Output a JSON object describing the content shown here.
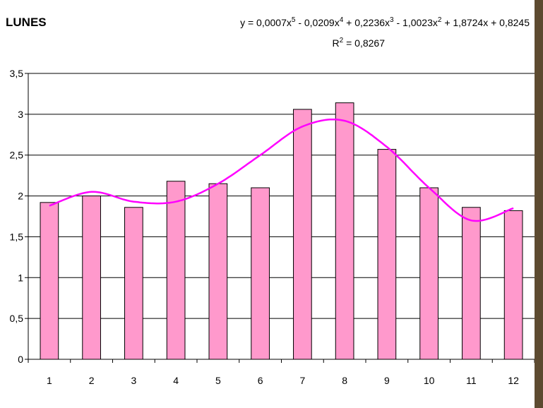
{
  "chart_data": {
    "type": "bar",
    "title": "LUNES",
    "categories": [
      "1",
      "2",
      "3",
      "4",
      "5",
      "6",
      "7",
      "8",
      "9",
      "10",
      "11",
      "12"
    ],
    "series": [
      {
        "values": [
          1.92,
          2.0,
          1.86,
          2.18,
          2.15,
          2.1,
          3.06,
          3.14,
          2.57,
          2.1,
          1.86,
          1.82
        ],
        "color": "#ff99cc"
      }
    ],
    "trendline": {
      "type": "polynomial",
      "order": 5,
      "coefficients": [
        0.0007,
        -0.0209,
        0.2236,
        -1.0023,
        1.8724,
        0.8245
      ],
      "equation_parts": {
        "lead": "y = 0,0007x",
        "p5": "5",
        "t4": " - 0,0209x",
        "p4": "4",
        "t3": " + 0,2236x",
        "p3": "3",
        "t2": " - 1,0023x",
        "p2": "2",
        "tail": " + 1,8724x + 0,8245"
      },
      "r2_parts": {
        "lead": "R",
        "p": "2",
        "tail": " = 0,8267"
      },
      "color": "#ff00ff"
    },
    "ylim": [
      0,
      3.5
    ],
    "yticks": [
      "0",
      "0,5",
      "1",
      "1,5",
      "2",
      "2,5",
      "3",
      "3,5"
    ],
    "grid": true,
    "xlabel": "",
    "ylabel": ""
  }
}
